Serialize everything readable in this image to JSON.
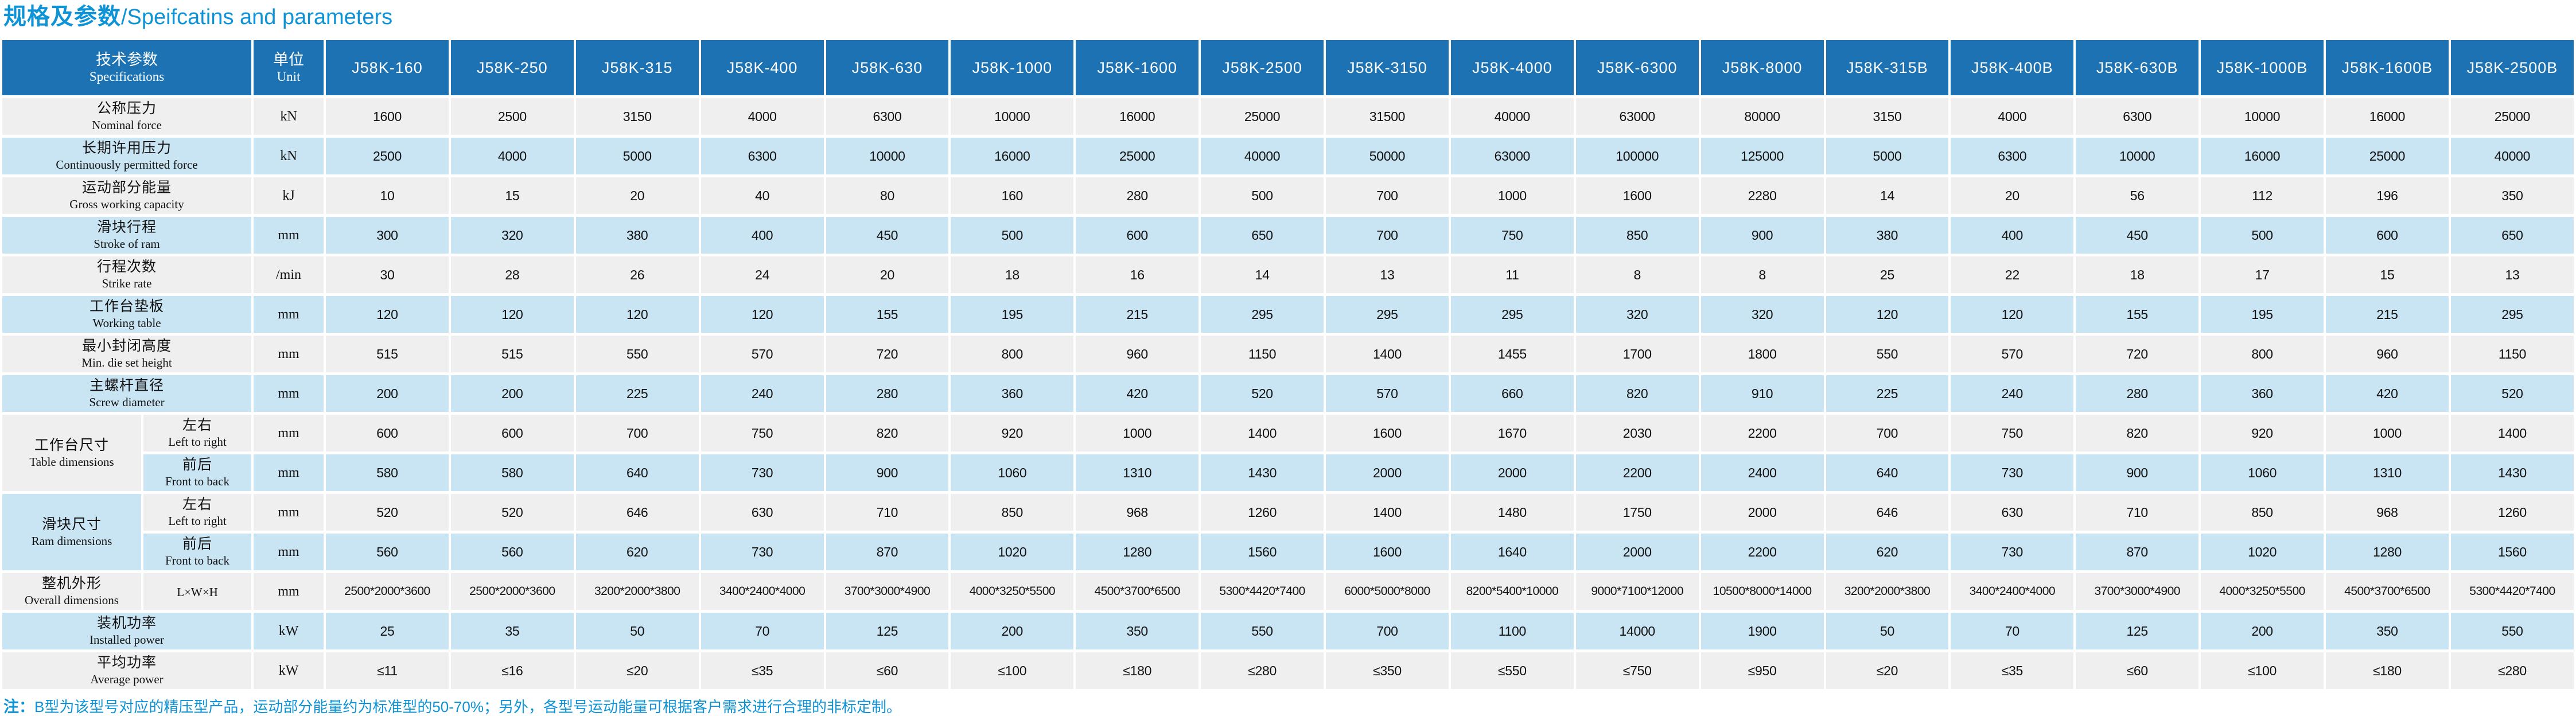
{
  "page": {
    "title_zh": "规格及参数",
    "title_en": "/Speifcatins and parameters",
    "note_prefix": "注：",
    "note_text": "B型为该型号对应的精压型产品，运动部分能量约为标准型的50-70%；另外，各型号运动能量可根据客户需求进行合理的非标定制。"
  },
  "colors": {
    "accent_blue": "#0e93d6",
    "header_blue": "#1c72b2",
    "row_blue": "#c9e4f2",
    "row_gray": "#efefef"
  },
  "table": {
    "header": {
      "spec_zh": "技术参数",
      "spec_en": "Specifications",
      "unit_zh": "单位",
      "unit_en": "Unit"
    },
    "models": [
      "J58K-160",
      "J58K-250",
      "J58K-315",
      "J58K-400",
      "J58K-630",
      "J58K-1000",
      "J58K-1600",
      "J58K-2500",
      "J58K-3150",
      "J58K-4000",
      "J58K-6300",
      "J58K-8000",
      "J58K-315B",
      "J58K-400B",
      "J58K-630B",
      "J58K-1000B",
      "J58K-1600B",
      "J58K-2500B"
    ],
    "rows": [
      {
        "label_zh": "公称压力",
        "label_en": "Nominal force",
        "unit": "kN",
        "values": [
          1600,
          2500,
          3150,
          4000,
          6300,
          10000,
          16000,
          25000,
          31500,
          40000,
          63000,
          80000,
          3150,
          4000,
          6300,
          10000,
          16000,
          25000
        ]
      },
      {
        "label_zh": "长期许用压力",
        "label_en": "Continuously permitted force",
        "unit": "kN",
        "values": [
          2500,
          4000,
          5000,
          6300,
          10000,
          16000,
          25000,
          40000,
          50000,
          63000,
          100000,
          125000,
          5000,
          6300,
          10000,
          16000,
          25000,
          40000
        ]
      },
      {
        "label_zh": "运动部分能量",
        "label_en": "Gross working capacity",
        "unit": "kJ",
        "values": [
          10,
          15,
          20,
          40,
          80,
          160,
          280,
          500,
          700,
          1000,
          1600,
          2280,
          14,
          20,
          56,
          112,
          196,
          350
        ]
      },
      {
        "label_zh": "滑块行程",
        "label_en": "Stroke of ram",
        "unit": "mm",
        "values": [
          300,
          320,
          380,
          400,
          450,
          500,
          600,
          650,
          700,
          750,
          850,
          900,
          380,
          400,
          450,
          500,
          600,
          650
        ]
      },
      {
        "label_zh": "行程次数",
        "label_en": "Strike rate",
        "unit": "/min",
        "values": [
          30,
          28,
          26,
          24,
          20,
          18,
          16,
          14,
          13,
          11,
          8,
          8,
          25,
          22,
          18,
          17,
          15,
          13
        ]
      },
      {
        "label_zh": "工作台垫板",
        "label_en": "Working table",
        "unit": "mm",
        "values": [
          120,
          120,
          120,
          120,
          155,
          195,
          215,
          295,
          295,
          295,
          320,
          320,
          120,
          120,
          155,
          195,
          215,
          295
        ]
      },
      {
        "label_zh": "最小封闭高度",
        "label_en": "Min. die set height",
        "unit": "mm",
        "values": [
          515,
          515,
          550,
          570,
          720,
          800,
          960,
          1150,
          1400,
          1455,
          1700,
          1800,
          550,
          570,
          720,
          800,
          960,
          1150
        ]
      },
      {
        "label_zh": "主螺杆直径",
        "label_en": "Screw diameter",
        "unit": "mm",
        "values": [
          200,
          200,
          225,
          240,
          280,
          360,
          420,
          520,
          570,
          660,
          820,
          910,
          225,
          240,
          280,
          360,
          420,
          520
        ]
      },
      {
        "group": {
          "zh": "工作台尺寸",
          "en": "Table dimensions",
          "rowspan": 2,
          "shade": "gray"
        },
        "sub": true,
        "label_zh": "左右",
        "label_en": "Left to right",
        "unit": "mm",
        "values": [
          600,
          600,
          700,
          750,
          820,
          920,
          1000,
          1400,
          1600,
          1670,
          2030,
          2200,
          700,
          750,
          820,
          920,
          1000,
          1400
        ]
      },
      {
        "sub": true,
        "label_zh": "前后",
        "label_en": "Front to back",
        "unit": "mm",
        "values": [
          580,
          580,
          640,
          730,
          900,
          1060,
          1310,
          1430,
          2000,
          2000,
          2200,
          2400,
          640,
          730,
          900,
          1060,
          1310,
          1430
        ]
      },
      {
        "group": {
          "zh": "滑块尺寸",
          "en": "Ram dimensions",
          "rowspan": 2,
          "shade": "blue"
        },
        "sub": true,
        "label_zh": "左右",
        "label_en": "Left to right",
        "unit": "mm",
        "values": [
          520,
          520,
          646,
          630,
          710,
          850,
          968,
          1260,
          1400,
          1480,
          1750,
          2000,
          646,
          630,
          710,
          850,
          968,
          1260
        ]
      },
      {
        "sub": true,
        "label_zh": "前后",
        "label_en": "Front to back",
        "unit": "mm",
        "values": [
          560,
          560,
          620,
          730,
          870,
          1020,
          1280,
          1560,
          1600,
          1640,
          2000,
          2200,
          620,
          730,
          870,
          1020,
          1280,
          1560
        ]
      },
      {
        "group": {
          "zh": "整机外形",
          "en": "Overall dimensions",
          "rowspan": 1,
          "shade": "gray"
        },
        "sub": true,
        "label_zh": "",
        "label_en": "L×W×H",
        "unit": "mm",
        "values": [
          "2500*2000*3600",
          "2500*2000*3600",
          "3200*2000*3800",
          "3400*2400*4000",
          "3700*3000*4900",
          "4000*3250*5500",
          "4500*3700*6500",
          "5300*4420*7400",
          "6000*5000*8000",
          "8200*5400*10000",
          "9000*7100*12000",
          "10500*8000*14000",
          "3200*2000*3800",
          "3400*2400*4000",
          "3700*3000*4900",
          "4000*3250*5500",
          "4500*3700*6500",
          "5300*4420*7400"
        ]
      },
      {
        "label_zh": "装机功率",
        "label_en": "Installed power",
        "unit": "kW",
        "values": [
          25,
          35,
          50,
          70,
          125,
          200,
          350,
          550,
          700,
          1100,
          14000,
          1900,
          50,
          70,
          125,
          200,
          350,
          550
        ]
      },
      {
        "label_zh": "平均功率",
        "label_en": "Average power",
        "unit": "kW",
        "values": [
          "≤11",
          "≤16",
          "≤20",
          "≤35",
          "≤60",
          "≤100",
          "≤180",
          "≤280",
          "≤350",
          "≤550",
          "≤750",
          "≤950",
          "≤20",
          "≤35",
          "≤60",
          "≤100",
          "≤180",
          "≤280"
        ]
      }
    ]
  }
}
